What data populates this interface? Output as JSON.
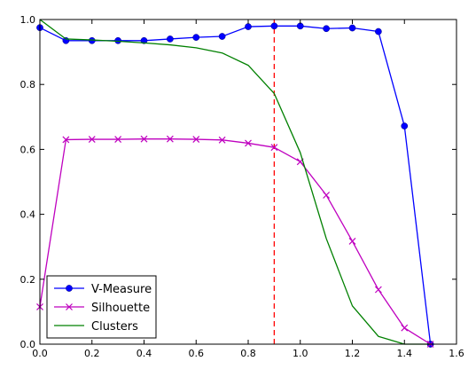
{
  "chart_data": {
    "type": "line",
    "xlim": [
      0.0,
      1.6
    ],
    "ylim": [
      0.0,
      1.0
    ],
    "x_ticks": [
      "0.0",
      "0.2",
      "0.4",
      "0.6",
      "0.8",
      "1.0",
      "1.2",
      "1.4",
      "1.6"
    ],
    "y_ticks": [
      "0.0",
      "0.2",
      "0.4",
      "0.6",
      "0.8",
      "1.0"
    ],
    "x": [
      0.0,
      0.1,
      0.2,
      0.3,
      0.4,
      0.5,
      0.6,
      0.7,
      0.8,
      0.9,
      1.0,
      1.1,
      1.2,
      1.3,
      1.4,
      1.5
    ],
    "series": [
      {
        "name": "V-Measure",
        "color": "#0000ff",
        "marker": "circle",
        "values": [
          0.975,
          0.935,
          0.935,
          0.935,
          0.935,
          0.94,
          0.945,
          0.948,
          0.978,
          0.98,
          0.98,
          0.972,
          0.974,
          0.963,
          0.672,
          0.0
        ]
      },
      {
        "name": "Silhouette",
        "color": "#bf00bf",
        "marker": "x",
        "values": [
          0.115,
          0.63,
          0.631,
          0.631,
          0.632,
          0.632,
          0.631,
          0.629,
          0.619,
          0.606,
          0.562,
          0.459,
          0.317,
          0.168,
          0.05,
          0.0
        ]
      },
      {
        "name": "Clusters",
        "color": "#008000",
        "marker": "none",
        "values": [
          1.0,
          0.94,
          0.937,
          0.933,
          0.928,
          0.922,
          0.913,
          0.897,
          0.859,
          0.772,
          0.59,
          0.325,
          0.118,
          0.024,
          0.0,
          0.0
        ]
      }
    ],
    "vline": {
      "x": 0.9,
      "color": "#ff0000",
      "style": "dashed"
    },
    "legend_placement": "lower-left",
    "grid": false
  }
}
